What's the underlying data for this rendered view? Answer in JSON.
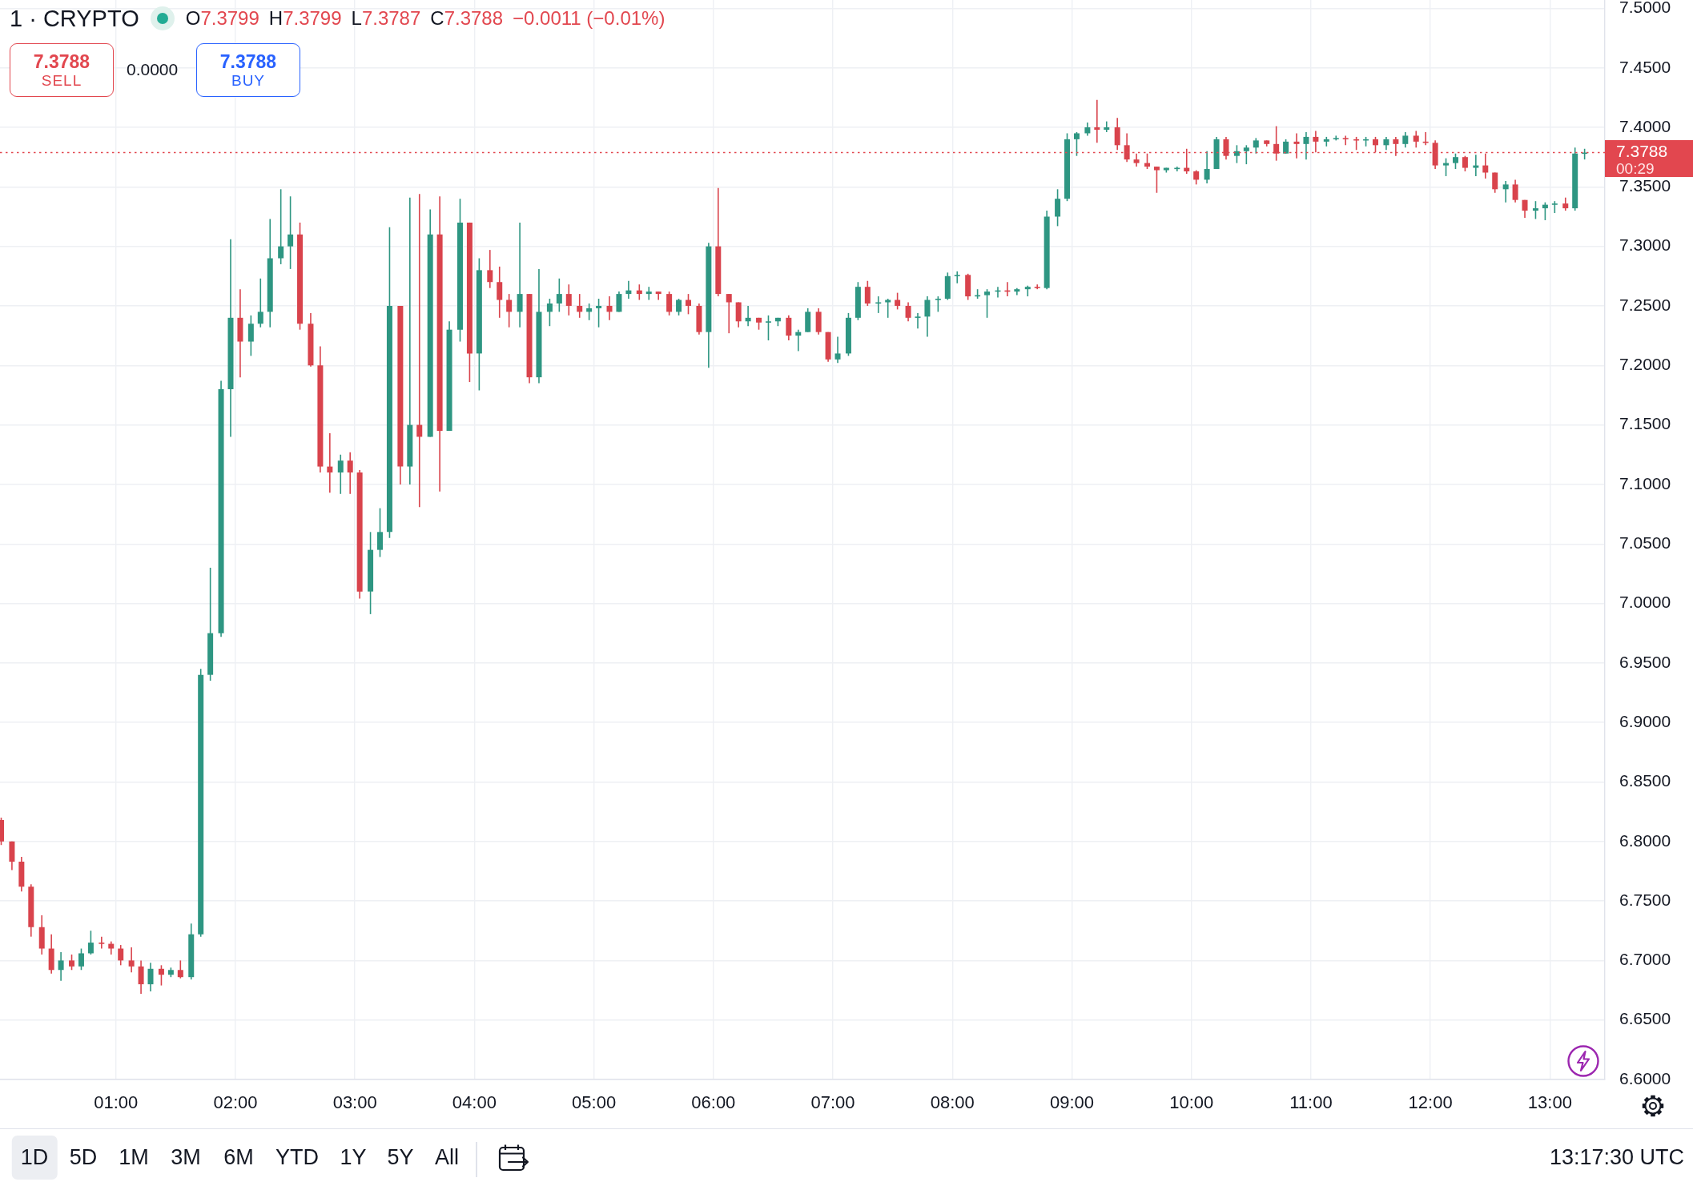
{
  "chart_data": {
    "type": "candlestick",
    "title": "1 · CRYPTO",
    "x": [
      0.04,
      0.13,
      0.21,
      0.29,
      0.38,
      0.46,
      0.54,
      0.63,
      0.71,
      0.79,
      0.88,
      0.96,
      1.04,
      1.13,
      1.21,
      1.29,
      1.38,
      1.46,
      1.54,
      1.63,
      1.71,
      1.79,
      1.88,
      1.96,
      2.04,
      2.13,
      2.21,
      2.29,
      2.38,
      2.46,
      2.54,
      2.63,
      2.71,
      2.79,
      2.88,
      2.96,
      3.04,
      3.13,
      3.21,
      3.29,
      3.38,
      3.46,
      3.54,
      3.63,
      3.71,
      3.79,
      3.88,
      3.96,
      4.04,
      4.13,
      4.21,
      4.29,
      4.38,
      4.46,
      4.54,
      4.63,
      4.71,
      4.79,
      4.88,
      4.96,
      5.04,
      5.13,
      5.21,
      5.29,
      5.38,
      5.46,
      5.54,
      5.63,
      5.71,
      5.79,
      5.88,
      5.96,
      6.04,
      6.13,
      6.21,
      6.29,
      6.38,
      6.46,
      6.54,
      6.63,
      6.71,
      6.79,
      6.88,
      6.96,
      7.04,
      7.13,
      7.21,
      7.29,
      7.38,
      7.46,
      7.54,
      7.63,
      7.71,
      7.79,
      7.88,
      7.96,
      8.04,
      8.13,
      8.21,
      8.29,
      8.38,
      8.46,
      8.54,
      8.63,
      8.71,
      8.79,
      8.88,
      8.96,
      9.04,
      9.13,
      9.21,
      9.29,
      9.38,
      9.46,
      9.54,
      9.63,
      9.71,
      9.79,
      9.88,
      9.96,
      10.04,
      10.13,
      10.21,
      10.29,
      10.38,
      10.46,
      10.54,
      10.63,
      10.71,
      10.79,
      10.88,
      10.96,
      11.04,
      11.13,
      11.21,
      11.29,
      11.38,
      11.46,
      11.54,
      11.63,
      11.71,
      11.79,
      11.88,
      11.96,
      12.04,
      12.13,
      12.21,
      12.29,
      12.38,
      12.46,
      12.54,
      12.63,
      12.71,
      12.79,
      12.88,
      12.96,
      13.04,
      13.13,
      13.21,
      13.29
    ],
    "ohlc": [
      [
        6.818,
        6.82,
        6.797,
        6.8
      ],
      [
        6.8,
        6.8,
        6.776,
        6.783
      ],
      [
        6.783,
        6.787,
        6.758,
        6.762
      ],
      [
        6.762,
        6.764,
        6.72,
        6.728
      ],
      [
        6.728,
        6.738,
        6.705,
        6.71
      ],
      [
        6.71,
        6.722,
        6.689,
        6.692
      ],
      [
        6.692,
        6.707,
        6.683,
        6.7
      ],
      [
        6.7,
        6.705,
        6.692,
        6.695
      ],
      [
        6.695,
        6.71,
        6.692,
        6.706
      ],
      [
        6.706,
        6.725,
        6.705,
        6.715
      ],
      [
        6.715,
        6.72,
        6.71,
        6.714
      ],
      [
        6.714,
        6.716,
        6.705,
        6.71
      ],
      [
        6.71,
        6.713,
        6.696,
        6.7
      ],
      [
        6.7,
        6.711,
        6.69,
        6.695
      ],
      [
        6.695,
        6.7,
        6.672,
        6.68
      ],
      [
        6.68,
        6.698,
        6.674,
        6.693
      ],
      [
        6.693,
        6.696,
        6.679,
        6.688
      ],
      [
        6.688,
        6.694,
        6.686,
        6.692
      ],
      [
        6.692,
        6.7,
        6.685,
        6.686
      ],
      [
        6.686,
        6.731,
        6.684,
        6.722
      ],
      [
        6.722,
        6.945,
        6.72,
        6.94
      ],
      [
        6.94,
        7.03,
        6.935,
        6.975
      ],
      [
        6.975,
        7.187,
        6.972,
        7.18
      ],
      [
        7.18,
        7.306,
        7.14,
        7.24
      ],
      [
        7.24,
        7.264,
        7.19,
        7.22
      ],
      [
        7.22,
        7.242,
        7.208,
        7.235
      ],
      [
        7.235,
        7.273,
        7.232,
        7.245
      ],
      [
        7.245,
        7.323,
        7.232,
        7.29
      ],
      [
        7.29,
        7.348,
        7.285,
        7.3
      ],
      [
        7.3,
        7.342,
        7.281,
        7.31
      ],
      [
        7.31,
        7.32,
        7.23,
        7.235
      ],
      [
        7.235,
        7.244,
        7.199,
        7.2
      ],
      [
        7.2,
        7.216,
        7.11,
        7.115
      ],
      [
        7.115,
        7.143,
        7.093,
        7.11
      ],
      [
        7.11,
        7.125,
        7.092,
        7.12
      ],
      [
        7.12,
        7.127,
        7.092,
        7.11
      ],
      [
        7.11,
        7.112,
        7.004,
        7.01
      ],
      [
        7.01,
        7.06,
        6.991,
        7.045
      ],
      [
        7.045,
        7.08,
        7.039,
        7.06
      ],
      [
        7.06,
        7.316,
        7.055,
        7.25
      ],
      [
        7.25,
        7.25,
        7.1,
        7.115
      ],
      [
        7.115,
        7.341,
        7.1,
        7.15
      ],
      [
        7.15,
        7.344,
        7.081,
        7.14
      ],
      [
        7.14,
        7.331,
        7.14,
        7.31
      ],
      [
        7.31,
        7.342,
        7.094,
        7.145
      ],
      [
        7.145,
        7.237,
        7.145,
        7.23
      ],
      [
        7.23,
        7.34,
        7.22,
        7.32
      ],
      [
        7.32,
        7.32,
        7.186,
        7.21
      ],
      [
        7.21,
        7.29,
        7.179,
        7.28
      ],
      [
        7.28,
        7.297,
        7.265,
        7.27
      ],
      [
        7.27,
        7.283,
        7.24,
        7.255
      ],
      [
        7.255,
        7.26,
        7.232,
        7.245
      ],
      [
        7.245,
        7.32,
        7.232,
        7.26
      ],
      [
        7.26,
        7.26,
        7.185,
        7.19
      ],
      [
        7.19,
        7.281,
        7.185,
        7.245
      ],
      [
        7.245,
        7.256,
        7.233,
        7.252
      ],
      [
        7.252,
        7.273,
        7.245,
        7.26
      ],
      [
        7.26,
        7.268,
        7.242,
        7.25
      ],
      [
        7.25,
        7.26,
        7.24,
        7.245
      ],
      [
        7.245,
        7.252,
        7.238,
        7.248
      ],
      [
        7.248,
        7.256,
        7.232,
        7.25
      ],
      [
        7.25,
        7.258,
        7.238,
        7.245
      ],
      [
        7.245,
        7.262,
        7.245,
        7.26
      ],
      [
        7.26,
        7.271,
        7.256,
        7.263
      ],
      [
        7.263,
        7.268,
        7.255,
        7.26
      ],
      [
        7.26,
        7.266,
        7.255,
        7.262
      ],
      [
        7.262,
        7.262,
        7.255,
        7.26
      ],
      [
        7.26,
        7.262,
        7.242,
        7.245
      ],
      [
        7.245,
        7.256,
        7.242,
        7.255
      ],
      [
        7.255,
        7.26,
        7.243,
        7.25
      ],
      [
        7.25,
        7.252,
        7.226,
        7.228
      ],
      [
        7.228,
        7.303,
        7.198,
        7.3
      ],
      [
        7.3,
        7.349,
        7.258,
        7.26
      ],
      [
        7.26,
        7.26,
        7.227,
        7.253
      ],
      [
        7.253,
        7.253,
        7.232,
        7.237
      ],
      [
        7.237,
        7.25,
        7.233,
        7.24
      ],
      [
        7.24,
        7.24,
        7.23,
        7.236
      ],
      [
        7.236,
        7.242,
        7.221,
        7.237
      ],
      [
        7.237,
        7.24,
        7.233,
        7.24
      ],
      [
        7.24,
        7.242,
        7.221,
        7.225
      ],
      [
        7.225,
        7.23,
        7.212,
        7.228
      ],
      [
        7.228,
        7.248,
        7.228,
        7.245
      ],
      [
        7.245,
        7.248,
        7.226,
        7.228
      ],
      [
        7.228,
        7.228,
        7.203,
        7.205
      ],
      [
        7.205,
        7.224,
        7.202,
        7.21
      ],
      [
        7.21,
        7.244,
        7.208,
        7.24
      ],
      [
        7.24,
        7.27,
        7.238,
        7.266
      ],
      [
        7.266,
        7.271,
        7.25,
        7.252
      ],
      [
        7.252,
        7.258,
        7.244,
        7.253
      ],
      [
        7.253,
        7.256,
        7.24,
        7.255
      ],
      [
        7.255,
        7.261,
        7.247,
        7.25
      ],
      [
        7.25,
        7.253,
        7.237,
        7.24
      ],
      [
        7.24,
        7.244,
        7.231,
        7.241
      ],
      [
        7.241,
        7.258,
        7.224,
        7.255
      ],
      [
        7.255,
        7.258,
        7.245,
        7.256
      ],
      [
        7.256,
        7.278,
        7.255,
        7.275
      ],
      [
        7.275,
        7.279,
        7.269,
        7.276
      ],
      [
        7.276,
        7.277,
        7.255,
        7.258
      ],
      [
        7.258,
        7.264,
        7.256,
        7.259
      ],
      [
        7.259,
        7.264,
        7.24,
        7.262
      ],
      [
        7.262,
        7.266,
        7.257,
        7.263
      ],
      [
        7.263,
        7.27,
        7.258,
        7.262
      ],
      [
        7.262,
        7.265,
        7.259,
        7.264
      ],
      [
        7.264,
        7.267,
        7.258,
        7.266
      ],
      [
        7.266,
        7.268,
        7.264,
        7.265
      ],
      [
        7.265,
        7.33,
        7.264,
        7.325
      ],
      [
        7.325,
        7.348,
        7.317,
        7.34
      ],
      [
        7.34,
        7.395,
        7.338,
        7.39
      ],
      [
        7.39,
        7.396,
        7.376,
        7.395
      ],
      [
        7.395,
        7.404,
        7.393,
        7.4
      ],
      [
        7.4,
        7.423,
        7.387,
        7.398
      ],
      [
        7.398,
        7.405,
        7.396,
        7.4
      ],
      [
        7.4,
        7.408,
        7.381,
        7.385
      ],
      [
        7.385,
        7.395,
        7.371,
        7.373
      ],
      [
        7.373,
        7.378,
        7.367,
        7.37
      ],
      [
        7.37,
        7.378,
        7.365,
        7.367
      ],
      [
        7.367,
        7.367,
        7.345,
        7.364
      ],
      [
        7.364,
        7.366,
        7.362,
        7.366
      ],
      [
        7.366,
        7.367,
        7.363,
        7.366
      ],
      [
        7.366,
        7.382,
        7.361,
        7.363
      ],
      [
        7.363,
        7.364,
        7.352,
        7.356
      ],
      [
        7.356,
        7.38,
        7.353,
        7.365
      ],
      [
        7.365,
        7.392,
        7.365,
        7.39
      ],
      [
        7.39,
        7.392,
        7.373,
        7.376
      ],
      [
        7.376,
        7.385,
        7.37,
        7.38
      ],
      [
        7.38,
        7.385,
        7.369,
        7.383
      ],
      [
        7.383,
        7.391,
        7.378,
        7.389
      ],
      [
        7.389,
        7.389,
        7.384,
        7.386
      ],
      [
        7.386,
        7.401,
        7.372,
        7.378
      ],
      [
        7.378,
        7.39,
        7.378,
        7.388
      ],
      [
        7.388,
        7.395,
        7.374,
        7.386
      ],
      [
        7.386,
        7.396,
        7.373,
        7.392
      ],
      [
        7.392,
        7.397,
        7.379,
        7.388
      ],
      [
        7.388,
        7.392,
        7.384,
        7.39
      ],
      [
        7.39,
        7.393,
        7.389,
        7.391
      ],
      [
        7.391,
        7.393,
        7.385,
        7.39
      ],
      [
        7.39,
        7.392,
        7.381,
        7.389
      ],
      [
        7.389,
        7.392,
        7.384,
        7.39
      ],
      [
        7.39,
        7.392,
        7.379,
        7.385
      ],
      [
        7.385,
        7.392,
        7.381,
        7.39
      ],
      [
        7.39,
        7.392,
        7.376,
        7.386
      ],
      [
        7.386,
        7.396,
        7.383,
        7.393
      ],
      [
        7.393,
        7.397,
        7.383,
        7.388
      ],
      [
        7.388,
        7.396,
        7.385,
        7.387
      ],
      [
        7.387,
        7.389,
        7.365,
        7.368
      ],
      [
        7.368,
        7.374,
        7.359,
        7.37
      ],
      [
        7.37,
        7.378,
        7.365,
        7.375
      ],
      [
        7.375,
        7.376,
        7.363,
        7.366
      ],
      [
        7.366,
        7.377,
        7.359,
        7.368
      ],
      [
        7.368,
        7.378,
        7.357,
        7.362
      ],
      [
        7.362,
        7.362,
        7.345,
        7.348
      ],
      [
        7.348,
        7.355,
        7.337,
        7.352
      ],
      [
        7.352,
        7.356,
        7.337,
        7.339
      ],
      [
        7.339,
        7.339,
        7.324,
        7.33
      ],
      [
        7.33,
        7.338,
        7.323,
        7.332
      ],
      [
        7.332,
        7.337,
        7.322,
        7.335
      ],
      [
        7.335,
        7.338,
        7.328,
        7.336
      ],
      [
        7.336,
        7.341,
        7.33,
        7.332
      ],
      [
        7.332,
        7.383,
        7.33,
        7.378
      ],
      [
        7.378,
        7.382,
        7.373,
        7.3788
      ]
    ],
    "colors": [
      "#d9434c",
      "#d9434c",
      "#d9434c",
      "#d9434c",
      "#d9434c",
      "#d9434c",
      "#2e9682",
      "#d9434c",
      "#2e9682",
      "#2e9682",
      "#d9434c",
      "#d9434c",
      "#d9434c",
      "#d9434c",
      "#d9434c",
      "#2e9682",
      "#d9434c",
      "#2e9682",
      "#d9434c",
      "#2e9682",
      "#2e9682",
      "#2e9682",
      "#2e9682",
      "#2e9682",
      "#d9434c",
      "#2e9682",
      "#2e9682",
      "#2e9682",
      "#2e9682",
      "#2e9682",
      "#d9434c",
      "#d9434c",
      "#d9434c",
      "#d9434c",
      "#2e9682",
      "#d9434c",
      "#d9434c",
      "#2e9682",
      "#2e9682",
      "#2e9682",
      "#d9434c",
      "#2e9682",
      "#d9434c",
      "#2e9682",
      "#d9434c",
      "#2e9682",
      "#2e9682",
      "#d9434c",
      "#2e9682",
      "#d9434c",
      "#d9434c",
      "#d9434c",
      "#2e9682",
      "#d9434c",
      "#2e9682",
      "#2e9682",
      "#2e9682",
      "#d9434c",
      "#d9434c",
      "#2e9682",
      "#2e9682",
      "#d9434c",
      "#2e9682",
      "#2e9682",
      "#d9434c",
      "#2e9682",
      "#d9434c",
      "#d9434c",
      "#2e9682",
      "#d9434c",
      "#d9434c",
      "#2e9682",
      "#d9434c",
      "#d9434c",
      "#d9434c",
      "#2e9682",
      "#d9434c",
      "#2e9682",
      "#2e9682",
      "#d9434c",
      "#2e9682",
      "#2e9682",
      "#d9434c",
      "#d9434c",
      "#2e9682",
      "#2e9682",
      "#2e9682",
      "#d9434c",
      "#2e9682",
      "#2e9682",
      "#d9434c",
      "#d9434c",
      "#2e9682",
      "#2e9682",
      "#2e9682",
      "#2e9682",
      "#2e9682",
      "#d9434c",
      "#2e9682",
      "#2e9682",
      "#2e9682",
      "#d9434c",
      "#2e9682",
      "#2e9682",
      "#d9434c",
      "#2e9682",
      "#2e9682",
      "#2e9682",
      "#2e9682",
      "#2e9682",
      "#d9434c",
      "#2e9682",
      "#d9434c",
      "#d9434c",
      "#d9434c",
      "#d9434c",
      "#d9434c",
      "#2e9682",
      "#2e9682",
      "#d9434c",
      "#d9434c",
      "#2e9682",
      "#2e9682",
      "#d9434c",
      "#2e9682",
      "#2e9682",
      "#2e9682",
      "#d9434c",
      "#d9434c",
      "#2e9682",
      "#d9434c",
      "#2e9682",
      "#d9434c",
      "#2e9682",
      "#2e9682",
      "#d9434c",
      "#d9434c",
      "#2e9682",
      "#d9434c",
      "#2e9682",
      "#d9434c",
      "#2e9682",
      "#d9434c",
      "#d9434c",
      "#d9434c",
      "#2e9682",
      "#2e9682",
      "#d9434c",
      "#2e9682",
      "#d9434c",
      "#d9434c",
      "#2e9682",
      "#d9434c",
      "#d9434c",
      "#2e9682",
      "#2e9682",
      "#2e9682",
      "#d9434c",
      "#2e9682",
      "#2e9682"
    ],
    "xlim": [
      0.03,
      13.46
    ],
    "xticks": [
      {
        "value": 1,
        "label": "01:00"
      },
      {
        "value": 2,
        "label": "02:00"
      },
      {
        "value": 3,
        "label": "03:00"
      },
      {
        "value": 4,
        "label": "04:00"
      },
      {
        "value": 5,
        "label": "05:00"
      },
      {
        "value": 6,
        "label": "06:00"
      },
      {
        "value": 7,
        "label": "07:00"
      },
      {
        "value": 8,
        "label": "08:00"
      },
      {
        "value": 9,
        "label": "09:00"
      },
      {
        "value": 10,
        "label": "10:00"
      },
      {
        "value": 11,
        "label": "11:00"
      },
      {
        "value": 12,
        "label": "12:00"
      },
      {
        "value": 13,
        "label": "13:00"
      }
    ],
    "ylim": [
      6.6,
      7.507
    ],
    "yticks": [
      {
        "value": 6.6,
        "label": "6.6000"
      },
      {
        "value": 6.65,
        "label": "6.6500"
      },
      {
        "value": 6.7,
        "label": "6.7000"
      },
      {
        "value": 6.75,
        "label": "6.7500"
      },
      {
        "value": 6.8,
        "label": "6.8000"
      },
      {
        "value": 6.85,
        "label": "6.8500"
      },
      {
        "value": 6.9,
        "label": "6.9000"
      },
      {
        "value": 6.95,
        "label": "6.9500"
      },
      {
        "value": 7,
        "label": "7.0000"
      },
      {
        "value": 7.05,
        "label": "7.0500"
      },
      {
        "value": 7.1,
        "label": "7.1000"
      },
      {
        "value": 7.15,
        "label": "7.1500"
      },
      {
        "value": 7.2,
        "label": "7.2000"
      },
      {
        "value": 7.25,
        "label": "7.2500"
      },
      {
        "value": 7.3,
        "label": "7.3000"
      },
      {
        "value": 7.35,
        "label": "7.3500"
      },
      {
        "value": 7.4,
        "label": "7.4000"
      },
      {
        "value": 7.45,
        "label": "7.4500"
      },
      {
        "value": 7.5,
        "label": "7.5000"
      }
    ],
    "grid": true,
    "ref_lines": [
      {
        "axis": "y",
        "value": 7.3788,
        "label": "7.3788",
        "color": "#e2474f",
        "line_style": "dotted"
      }
    ],
    "annotations": [
      "O7.3799",
      "H7.3799",
      "L7.3787",
      "C7.3788",
      "−0.0011 (−0.01%)",
      "7.3788",
      "SELL",
      "0.0000",
      "7.3788",
      "BUY",
      "00:29",
      "1D",
      "5D",
      "1M",
      "3M",
      "6M",
      "YTD",
      "1Y",
      "5Y",
      "All",
      "13:17:30 UTC"
    ]
  }
}
